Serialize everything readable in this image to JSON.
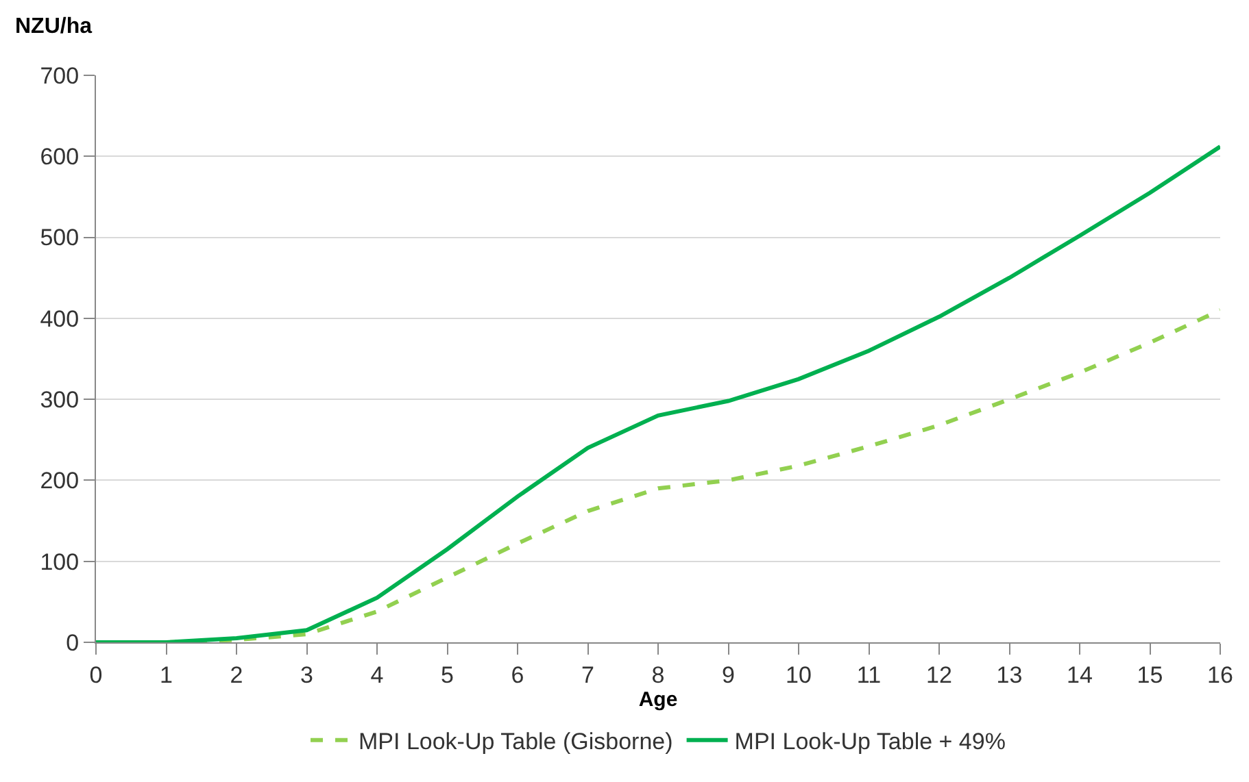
{
  "chart_data": {
    "type": "line",
    "ylabel": "NZU/ha",
    "xlabel": "Age",
    "x": [
      0,
      1,
      2,
      3,
      4,
      5,
      6,
      7,
      8,
      9,
      10,
      11,
      12,
      13,
      14,
      15,
      16
    ],
    "series": [
      {
        "name": "MPI Look-Up Table (Gisborne)",
        "color": "#92d050",
        "line_style": "dashed",
        "values": [
          0,
          0,
          3,
          10,
          38,
          80,
          122,
          162,
          190,
          200,
          218,
          242,
          268,
          300,
          333,
          370,
          410
        ]
      },
      {
        "name": "MPI Look-Up Table + 49%",
        "color": "#00b050",
        "line_style": "solid",
        "values": [
          0,
          0,
          5,
          15,
          55,
          115,
          180,
          240,
          280,
          298,
          325,
          360,
          402,
          450,
          502,
          555,
          612
        ]
      }
    ],
    "xlim": [
      0,
      16
    ],
    "xticks": [
      0,
      1,
      2,
      3,
      4,
      5,
      6,
      7,
      8,
      9,
      10,
      11,
      12,
      13,
      14,
      15,
      16
    ],
    "ylim": [
      0,
      700
    ],
    "yticks": [
      0,
      100,
      200,
      300,
      400,
      500,
      600,
      700
    ],
    "grid": "y",
    "legend": "bottom",
    "marker": "none"
  }
}
